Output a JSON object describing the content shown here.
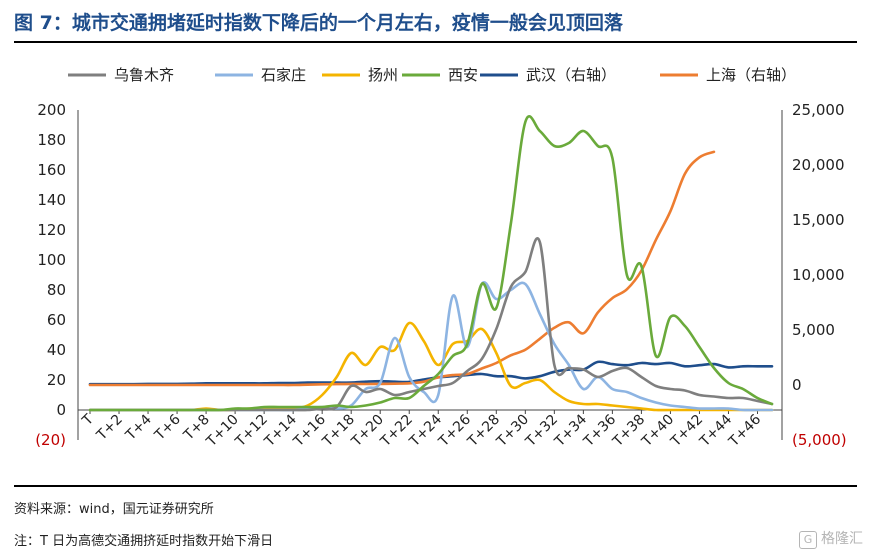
{
  "title": "图 7：城市交通拥堵延时指数下降后的一个月左右，疫情一般会见顶回落",
  "source": "资料来源：wind，国元证券研究所",
  "note": "注：T 日为高德交通拥挤延时指数开始下滑日",
  "watermark": "格隆汇",
  "chart_data": {
    "type": "line",
    "x": [
      "T",
      "T+1",
      "T+2",
      "T+3",
      "T+4",
      "T+5",
      "T+6",
      "T+7",
      "T+8",
      "T+9",
      "T+10",
      "T+11",
      "T+12",
      "T+13",
      "T+14",
      "T+15",
      "T+16",
      "T+17",
      "T+18",
      "T+19",
      "T+20",
      "T+21",
      "T+22",
      "T+23",
      "T+24",
      "T+25",
      "T+26",
      "T+27",
      "T+28",
      "T+29",
      "T+30",
      "T+31",
      "T+32",
      "T+33",
      "T+34",
      "T+35",
      "T+36",
      "T+37",
      "T+38",
      "T+39",
      "T+40",
      "T+41",
      "T+42",
      "T+43",
      "T+44",
      "T+45",
      "T+46",
      "T+47"
    ],
    "x_tick_labels": [
      "T",
      "T+2",
      "T+4",
      "T+6",
      "T+8",
      "T+10",
      "T+12",
      "T+14",
      "T+16",
      "T+18",
      "T+20",
      "T+22",
      "T+24",
      "T+26",
      "T+28",
      "T+30",
      "T+32",
      "T+34",
      "T+36",
      "T+38",
      "T+40",
      "T+42",
      "T+44",
      "T+46"
    ],
    "y_left": {
      "ticks": [
        "(20)",
        "0",
        "20",
        "40",
        "60",
        "80",
        "100",
        "120",
        "140",
        "160",
        "180",
        "200"
      ],
      "lim": [
        -20,
        200
      ]
    },
    "y_right": {
      "ticks": [
        "(5,000)",
        "0",
        "5,000",
        "10,000",
        "15,000",
        "20,000",
        "25,000"
      ],
      "lim": [
        -5000,
        25000
      ]
    },
    "series": [
      {
        "name": "乌鲁木齐",
        "axis": "left",
        "color": "#7f7f7f",
        "values": [
          0,
          0,
          0,
          0,
          0,
          0,
          0,
          0,
          0,
          0,
          0,
          0,
          0,
          0,
          0,
          0,
          1,
          2,
          16,
          12,
          14,
          10,
          12,
          14,
          16,
          18,
          26,
          34,
          54,
          82,
          92,
          112,
          30,
          28,
          27,
          22,
          26,
          28,
          22,
          16,
          14,
          13,
          10,
          9,
          8,
          8,
          6,
          4
        ]
      },
      {
        "name": "石家庄",
        "axis": "left",
        "color": "#8db4e2",
        "values": [
          0,
          0,
          0,
          0,
          0,
          0,
          0,
          0,
          0,
          0,
          0,
          0,
          0,
          0,
          0,
          1,
          2,
          1,
          3,
          14,
          18,
          48,
          22,
          12,
          10,
          76,
          42,
          84,
          74,
          80,
          84,
          64,
          44,
          30,
          14,
          22,
          14,
          12,
          8,
          5,
          3,
          2,
          1,
          1,
          1,
          0,
          0,
          0
        ]
      },
      {
        "name": "扬州",
        "axis": "left",
        "color": "#f4b400",
        "values": [
          0,
          0,
          0,
          0,
          0,
          0,
          0,
          0,
          1,
          0,
          0,
          1,
          1,
          1,
          1,
          3,
          10,
          22,
          38,
          30,
          42,
          40,
          58,
          46,
          30,
          44,
          46,
          54,
          38,
          16,
          18,
          20,
          12,
          6,
          4,
          4,
          3,
          2,
          1,
          0,
          0,
          0,
          0,
          0,
          0,
          0,
          0,
          0
        ]
      },
      {
        "name": "西安",
        "axis": "left",
        "color": "#6aaa3b",
        "values": [
          0,
          0,
          0,
          0,
          0,
          0,
          0,
          0,
          0,
          0,
          1,
          1,
          2,
          2,
          2,
          2,
          2,
          3,
          2,
          3,
          5,
          8,
          8,
          16,
          24,
          36,
          44,
          84,
          68,
          124,
          192,
          186,
          176,
          178,
          186,
          176,
          168,
          90,
          96,
          36,
          62,
          56,
          42,
          28,
          18,
          14,
          8,
          4
        ]
      },
      {
        "name": "武汉（右轴）",
        "axis": "right",
        "color": "#1f4e8c",
        "values": [
          80,
          80,
          80,
          80,
          100,
          100,
          100,
          120,
          150,
          150,
          150,
          150,
          150,
          180,
          180,
          220,
          220,
          220,
          220,
          300,
          350,
          300,
          280,
          500,
          700,
          800,
          900,
          1000,
          800,
          800,
          600,
          800,
          1200,
          1400,
          1400,
          2100,
          1900,
          1800,
          2000,
          1900,
          2000,
          1700,
          1800,
          1900,
          1600,
          1700,
          1700,
          1700
        ]
      },
      {
        "name": "上海（右轴）",
        "axis": "right",
        "color": "#ed7d31",
        "values": [
          0,
          0,
          0,
          0,
          0,
          0,
          0,
          0,
          0,
          0,
          0,
          0,
          0,
          0,
          0,
          30,
          60,
          80,
          100,
          90,
          100,
          120,
          150,
          300,
          700,
          900,
          1000,
          1500,
          2000,
          2700,
          3200,
          4200,
          5200,
          5700,
          4700,
          6600,
          7900,
          8700,
          10400,
          13200,
          15800,
          19200,
          20700,
          21200,
          null,
          null,
          null,
          null
        ]
      }
    ]
  }
}
